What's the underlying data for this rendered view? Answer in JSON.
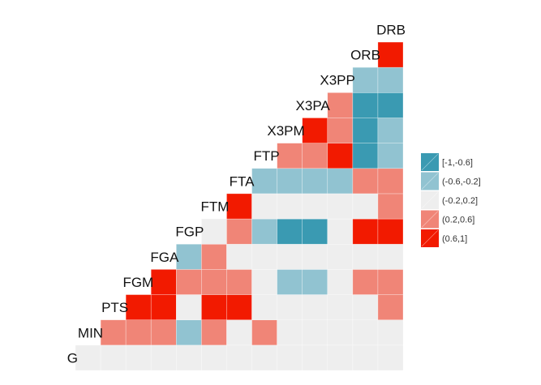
{
  "chart_data": {
    "type": "heatmap",
    "title": "",
    "layout": "lower-triangular correlation matrix",
    "variables": [
      "G",
      "MIN",
      "PTS",
      "FGM",
      "FGA",
      "FGP",
      "FTM",
      "FTA",
      "FTP",
      "X3PM",
      "X3PA",
      "X3PP",
      "ORB",
      "DRB"
    ],
    "bins": [
      {
        "label": "[-1,-0.6]",
        "color": "#3A9AB2"
      },
      {
        "label": "(-0.6,-0.2]",
        "color": "#91C3D1"
      },
      {
        "label": "(-0.2,0.2]",
        "color": "#EEEEEE"
      },
      {
        "label": "(0.2,0.6]",
        "color": "#F08577"
      },
      {
        "label": "(0.6,1]",
        "color": "#F21A00"
      }
    ],
    "legend_position": "right",
    "note": "rows[i].bins[j] is the correlation bin index (0-4) between rows[i].var and the j-th variable following it in 'variables'",
    "rows": [
      {
        "var": "G",
        "bins": [
          2,
          2,
          2,
          2,
          2,
          2,
          2,
          2,
          2,
          2,
          2,
          2,
          2
        ]
      },
      {
        "var": "MIN",
        "bins": [
          3,
          3,
          3,
          1,
          3,
          2,
          3,
          2,
          2,
          2,
          2,
          2
        ]
      },
      {
        "var": "PTS",
        "bins": [
          4,
          4,
          2,
          4,
          4,
          2,
          2,
          2,
          2,
          2,
          3
        ]
      },
      {
        "var": "FGM",
        "bins": [
          4,
          3,
          3,
          3,
          2,
          1,
          1,
          2,
          3,
          3
        ]
      },
      {
        "var": "FGA",
        "bins": [
          1,
          3,
          2,
          2,
          2,
          2,
          2,
          2,
          2
        ]
      },
      {
        "var": "FGP",
        "bins": [
          2,
          3,
          1,
          0,
          0,
          2,
          4,
          4
        ]
      },
      {
        "var": "FTM",
        "bins": [
          4,
          2,
          2,
          2,
          2,
          2,
          3
        ]
      },
      {
        "var": "FTA",
        "bins": [
          1,
          1,
          1,
          1,
          3,
          3
        ]
      },
      {
        "var": "FTP",
        "bins": [
          3,
          3,
          4,
          0,
          1
        ]
      },
      {
        "var": "X3PM",
        "bins": [
          4,
          3,
          0,
          1
        ]
      },
      {
        "var": "X3PA",
        "bins": [
          3,
          0,
          0
        ]
      },
      {
        "var": "X3PP",
        "bins": [
          1,
          1
        ]
      },
      {
        "var": "ORB",
        "bins": [
          4
        ]
      },
      {
        "var": "DRB",
        "bins": []
      }
    ]
  }
}
